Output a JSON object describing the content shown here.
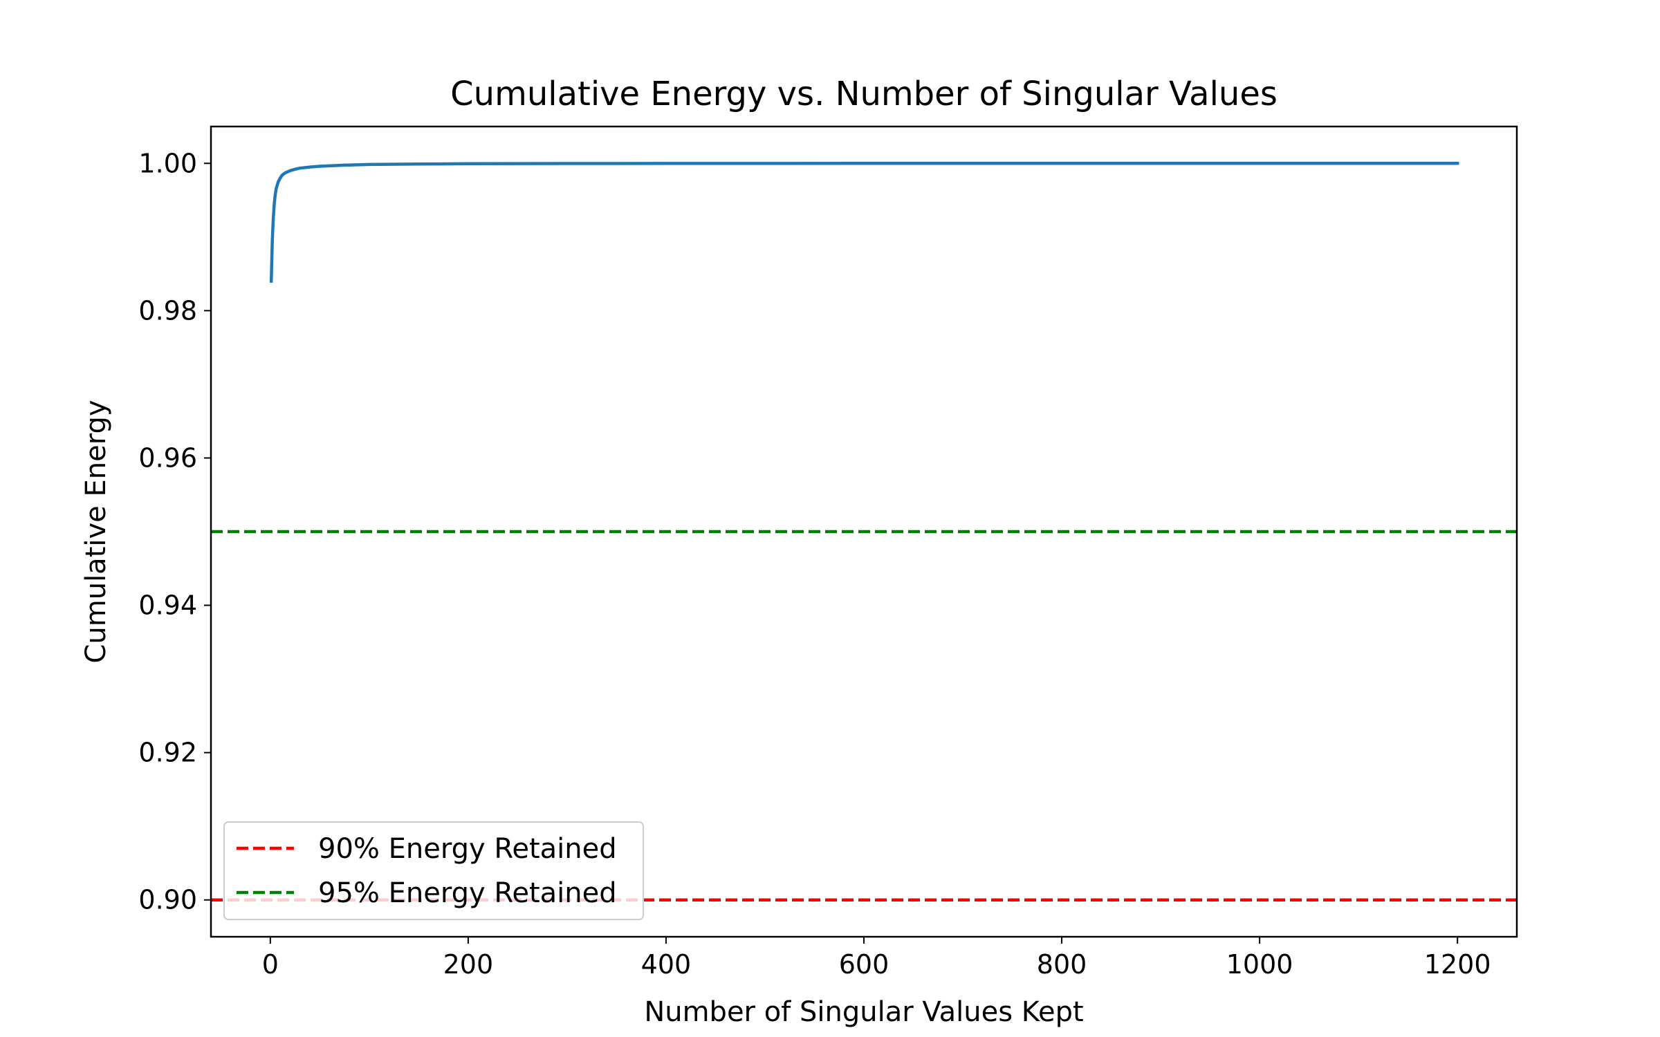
{
  "chart_data": {
    "type": "line",
    "title": "Cumulative Energy vs. Number of Singular Values",
    "xlabel": "Number of Singular Values Kept",
    "ylabel": "Cumulative Energy",
    "xlim": [
      -60,
      1260
    ],
    "ylim": [
      0.895,
      1.005
    ],
    "xticks": [
      0,
      200,
      400,
      600,
      800,
      1000,
      1200
    ],
    "xtick_labels": [
      "0",
      "200",
      "400",
      "600",
      "800",
      "1000",
      "1200"
    ],
    "yticks": [
      0.9,
      0.92,
      0.94,
      0.96,
      0.98,
      1.0
    ],
    "ytick_labels": [
      "0.90",
      "0.92",
      "0.94",
      "0.96",
      "0.98",
      "1.00"
    ],
    "grid": false,
    "legend_position": "lower-left",
    "series": [
      {
        "kind": "curve",
        "color": "#1f77b4",
        "x": [
          1,
          2,
          3,
          4,
          5,
          6,
          8,
          10,
          12,
          15,
          20,
          25,
          30,
          40,
          50,
          75,
          100,
          150,
          200,
          300,
          400,
          600,
          800,
          1000,
          1200
        ],
        "y": [
          0.984,
          0.9895,
          0.9925,
          0.9945,
          0.9958,
          0.9966,
          0.9975,
          0.998,
          0.9984,
          0.9987,
          0.999,
          0.9992,
          0.99935,
          0.9995,
          0.9996,
          0.99975,
          0.99985,
          0.9999,
          0.99995,
          0.99998,
          0.99999,
          1.0,
          1.0,
          1.0,
          1.0
        ]
      },
      {
        "kind": "hline",
        "name": "90% Energy Retained",
        "y": 0.9,
        "color": "#ff0000",
        "style": "dashed"
      },
      {
        "kind": "hline",
        "name": "95% Energy Retained",
        "y": 0.95,
        "color": "#008000",
        "style": "dashed"
      }
    ]
  }
}
